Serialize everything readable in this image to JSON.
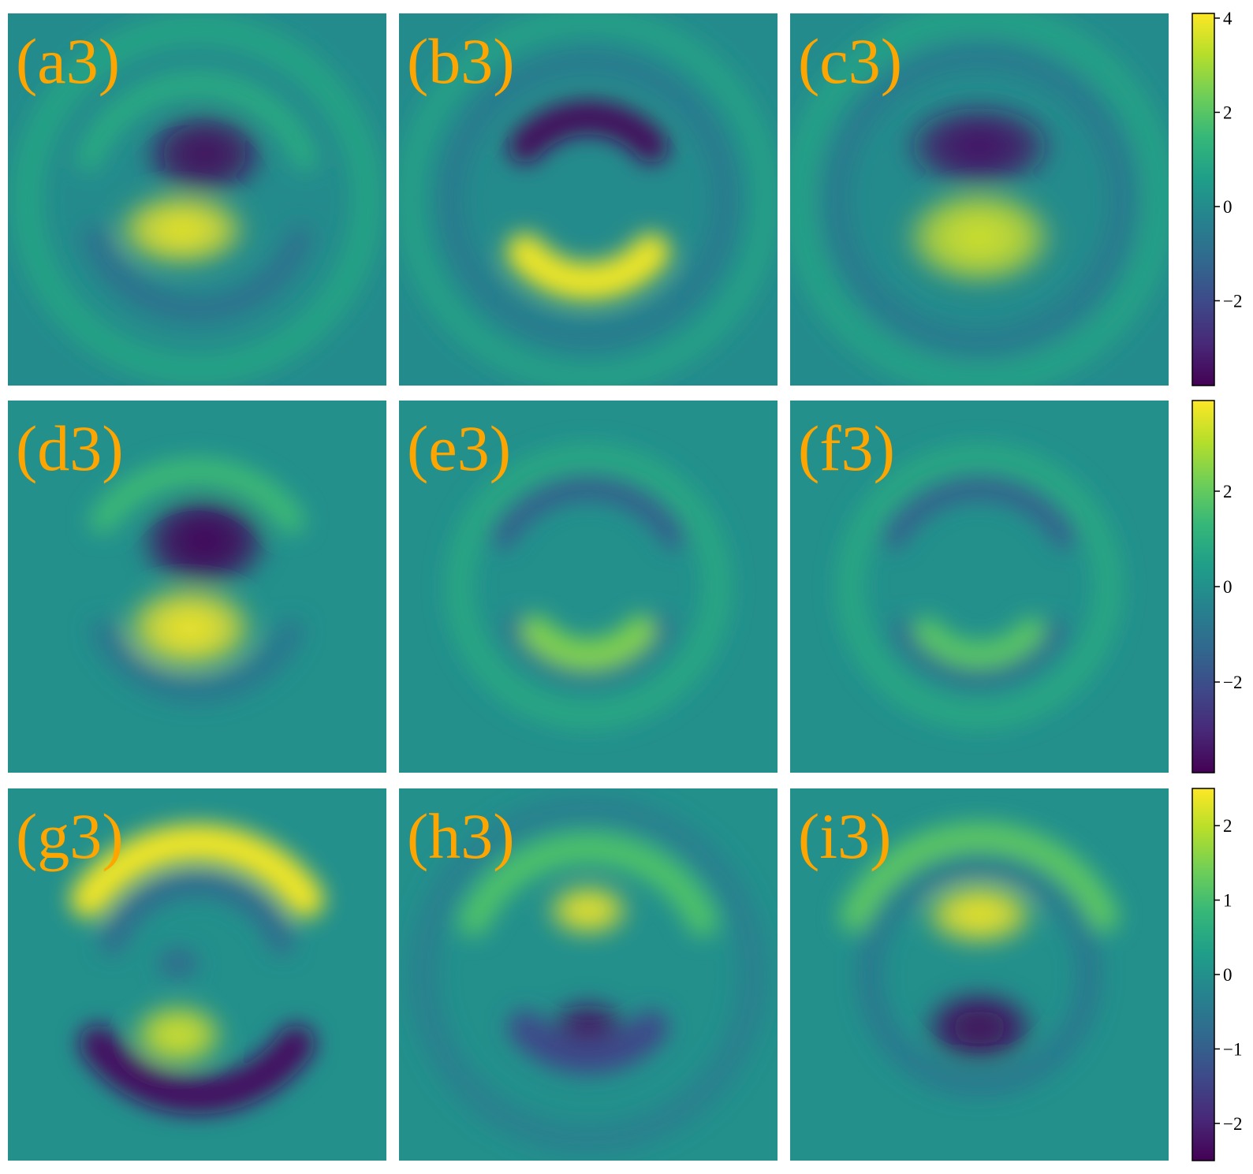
{
  "chart_data": {
    "type": "heatmap",
    "colormap": "viridis",
    "label_color": "#FFA500",
    "grid": false,
    "rows": [
      {
        "colorbar": {
          "range": [
            -3.8,
            4.1
          ],
          "ticks": [
            {
              "value": 4,
              "label": "4"
            },
            {
              "value": 2,
              "label": "2"
            },
            {
              "value": 0,
              "label": "0"
            },
            {
              "value": -2,
              "label": "−2"
            }
          ]
        },
        "panels": [
          {
            "label": "(a3)"
          },
          {
            "label": "(b3)"
          },
          {
            "label": "(c3)"
          }
        ]
      },
      {
        "colorbar": {
          "range": [
            -3.9,
            3.9
          ],
          "ticks": [
            {
              "value": 2,
              "label": "2"
            },
            {
              "value": 0,
              "label": "0"
            },
            {
              "value": -2,
              "label": "−2"
            }
          ]
        },
        "panels": [
          {
            "label": "(d3)"
          },
          {
            "label": "(e3)"
          },
          {
            "label": "(f3)"
          }
        ]
      },
      {
        "colorbar": {
          "range": [
            -2.5,
            2.5
          ],
          "ticks": [
            {
              "value": 2,
              "label": "2"
            },
            {
              "value": 1,
              "label": "1"
            },
            {
              "value": 0,
              "label": "0"
            },
            {
              "value": -1,
              "label": "−1"
            },
            {
              "value": -2,
              "label": "−2"
            }
          ]
        },
        "panels": [
          {
            "label": "(g3)"
          },
          {
            "label": "(h3)"
          },
          {
            "label": "(i3)"
          }
        ]
      }
    ]
  }
}
